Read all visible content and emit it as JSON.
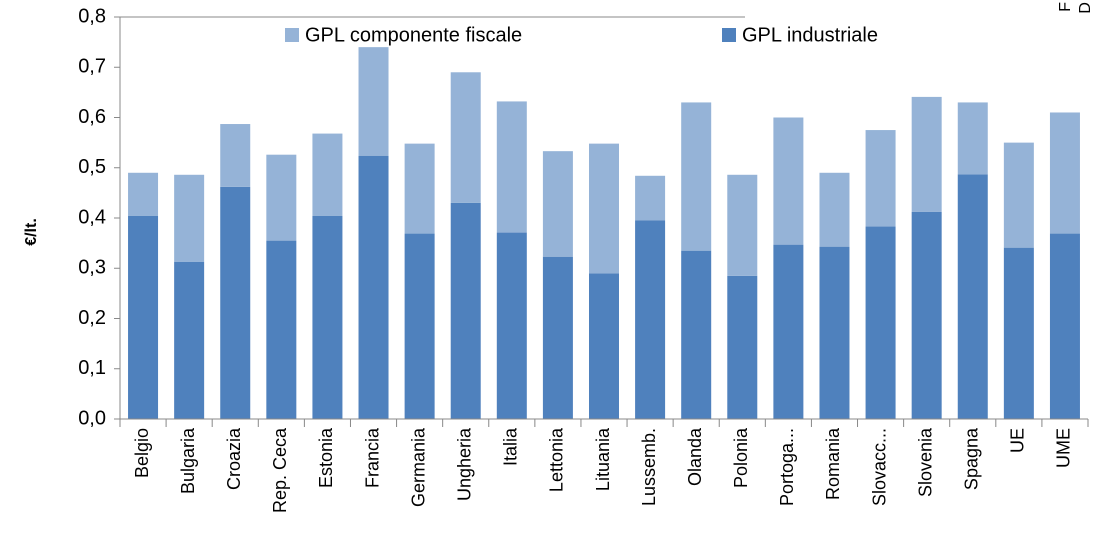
{
  "chart_data": {
    "type": "stacked_bar",
    "y_label": "€/lt.",
    "side_notes": [
      "F",
      "D"
    ],
    "categories": [
      "Belgio",
      "Bulgaria",
      "Croazia",
      "Rep. Ceca",
      "Estonia",
      "Francia",
      "Germania",
      "Ungheria",
      "Italia",
      "Lettonia",
      "Lituania",
      "Lussemb.",
      "Olanda",
      "Polonia",
      "Portoga...",
      "Romania",
      "Slovacc...",
      "Slovenia",
      "Spagna",
      "UE",
      "UME"
    ],
    "series": [
      {
        "name": "GPL industriale",
        "color": "#4f81bd",
        "values": [
          0.404,
          0.313,
          0.462,
          0.355,
          0.404,
          0.524,
          0.369,
          0.43,
          0.371,
          0.323,
          0.29,
          0.395,
          0.335,
          0.285,
          0.347,
          0.343,
          0.383,
          0.412,
          0.487,
          0.341,
          0.369
        ]
      },
      {
        "name": "GPL componente fiscale",
        "color": "#95b3d7",
        "values": [
          0.086,
          0.173,
          0.125,
          0.171,
          0.164,
          0.216,
          0.179,
          0.26,
          0.261,
          0.21,
          0.258,
          0.089,
          0.295,
          0.201,
          0.253,
          0.147,
          0.192,
          0.229,
          0.143,
          0.209,
          0.241
        ]
      }
    ],
    "ylim": [
      0,
      0.8
    ],
    "yticks": [
      {
        "value": 0,
        "label": "0,0"
      },
      {
        "value": 0.1,
        "label": "0,1"
      },
      {
        "value": 0.2,
        "label": "0,2"
      },
      {
        "value": 0.3,
        "label": "0,3"
      },
      {
        "value": 0.4,
        "label": "0,4"
      },
      {
        "value": 0.5,
        "label": "0,5"
      },
      {
        "value": 0.6,
        "label": "0,6"
      },
      {
        "value": 0.7,
        "label": "0,7"
      },
      {
        "value": 0.8,
        "label": "0,8"
      }
    ],
    "grid": false
  }
}
